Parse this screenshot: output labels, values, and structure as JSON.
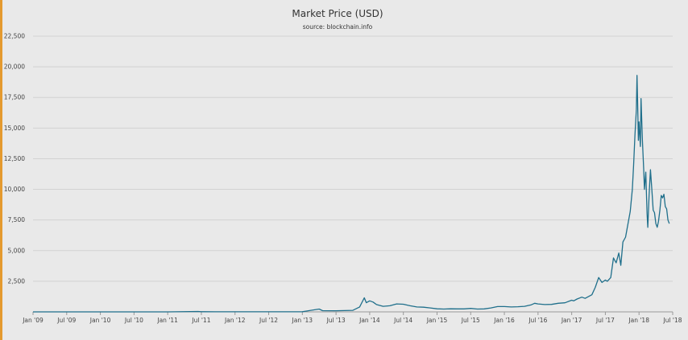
{
  "colors": {
    "background": "#e9e9e9",
    "line": "#1f6f8b",
    "grid": "#d2d2d2",
    "axis": "#999999",
    "accent_border": "#e49a2f"
  },
  "chart_data": {
    "type": "line",
    "title": "Market Price (USD)",
    "subtitle": "source: blockchain.info",
    "xlabel": "",
    "ylabel": "",
    "ylim": [
      0,
      22500
    ],
    "xlim": [
      2009.0,
      2018.5
    ],
    "grid": true,
    "legend": "none",
    "yticks": [
      {
        "value": 2500,
        "label": "2,500"
      },
      {
        "value": 5000,
        "label": "5,000"
      },
      {
        "value": 7500,
        "label": "7,500"
      },
      {
        "value": 10000,
        "label": "10,000"
      },
      {
        "value": 12500,
        "label": "12,500"
      },
      {
        "value": 15000,
        "label": "15,000"
      },
      {
        "value": 17500,
        "label": "17,500"
      },
      {
        "value": 20000,
        "label": "20,000"
      },
      {
        "value": 22500,
        "label": "22,500"
      }
    ],
    "xticks": [
      {
        "value": 2009.0,
        "label": "Jan '09"
      },
      {
        "value": 2009.5,
        "label": "Jul '09"
      },
      {
        "value": 2010.0,
        "label": "Jan '10"
      },
      {
        "value": 2010.5,
        "label": "Jul '10"
      },
      {
        "value": 2011.0,
        "label": "Jan '11"
      },
      {
        "value": 2011.5,
        "label": "Jul '11"
      },
      {
        "value": 2012.0,
        "label": "Jan '12"
      },
      {
        "value": 2012.5,
        "label": "Jul '12"
      },
      {
        "value": 2013.0,
        "label": "Jan '13"
      },
      {
        "value": 2013.5,
        "label": "Jul '13"
      },
      {
        "value": 2014.0,
        "label": "Jan '14"
      },
      {
        "value": 2014.5,
        "label": "Jul '14"
      },
      {
        "value": 2015.0,
        "label": "Jan '15"
      },
      {
        "value": 2015.5,
        "label": "Jul '15"
      },
      {
        "value": 2016.0,
        "label": "Jan '16"
      },
      {
        "value": 2016.5,
        "label": "Jul '16"
      },
      {
        "value": 2017.0,
        "label": "Jan '17"
      },
      {
        "value": 2017.5,
        "label": "Jul '17"
      },
      {
        "value": 2018.0,
        "label": "Jan '18"
      },
      {
        "value": 2018.5,
        "label": "Jul '18"
      }
    ],
    "series": [
      {
        "name": "Market Price (USD)",
        "x": [
          2009.0,
          2010.0,
          2010.5,
          2011.0,
          2011.45,
          2011.5,
          2011.7,
          2012.0,
          2012.5,
          2013.0,
          2013.25,
          2013.3,
          2013.5,
          2013.75,
          2013.85,
          2013.92,
          2013.95,
          2014.0,
          2014.05,
          2014.1,
          2014.2,
          2014.3,
          2014.4,
          2014.5,
          2014.6,
          2014.7,
          2014.8,
          2014.9,
          2015.0,
          2015.1,
          2015.2,
          2015.3,
          2015.4,
          2015.5,
          2015.6,
          2015.7,
          2015.8,
          2015.9,
          2016.0,
          2016.1,
          2016.2,
          2016.3,
          2016.4,
          2016.45,
          2016.5,
          2016.6,
          2016.7,
          2016.8,
          2016.9,
          2017.0,
          2017.03,
          2017.08,
          2017.15,
          2017.2,
          2017.25,
          2017.3,
          2017.35,
          2017.4,
          2017.45,
          2017.5,
          2017.53,
          2017.58,
          2017.62,
          2017.66,
          2017.7,
          2017.73,
          2017.76,
          2017.8,
          2017.84,
          2017.87,
          2017.9,
          2017.92,
          2017.94,
          2017.96,
          2017.97,
          2017.98,
          2017.99,
          2018.0,
          2018.02,
          2018.03,
          2018.05,
          2018.07,
          2018.08,
          2018.1,
          2018.12,
          2018.13,
          2018.15,
          2018.17,
          2018.19,
          2018.21,
          2018.23,
          2018.25,
          2018.27,
          2018.29,
          2018.31,
          2018.33,
          2018.35,
          2018.37,
          2018.39,
          2018.41,
          2018.43,
          2018.45
        ],
        "values": [
          0,
          0,
          0.1,
          0.3,
          30,
          15,
          5,
          5,
          7,
          13,
          230,
          100,
          90,
          125,
          400,
          1150,
          750,
          900,
          800,
          600,
          450,
          500,
          650,
          620,
          500,
          400,
          380,
          320,
          250,
          230,
          250,
          240,
          240,
          280,
          230,
          240,
          320,
          430,
          430,
          400,
          420,
          450,
          580,
          700,
          650,
          600,
          610,
          700,
          740,
          950,
          900,
          1050,
          1200,
          1100,
          1250,
          1400,
          2000,
          2800,
          2400,
          2600,
          2500,
          2800,
          4400,
          4000,
          4800,
          3800,
          5700,
          6100,
          7300,
          8200,
          10000,
          12000,
          14500,
          16500,
          19300,
          17000,
          14000,
          15500,
          13500,
          17400,
          14000,
          11500,
          10000,
          11400,
          8000,
          6900,
          9500,
          11600,
          10000,
          8300,
          8100,
          7200,
          6900,
          7400,
          8300,
          9500,
          9300,
          9600,
          8600,
          8400,
          7500,
          7200
        ]
      }
    ]
  }
}
